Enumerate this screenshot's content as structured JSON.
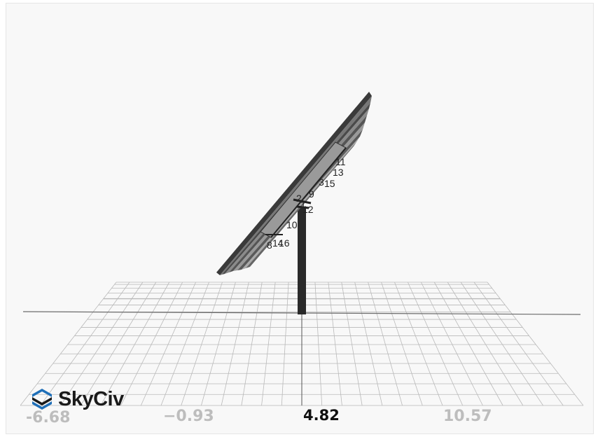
{
  "viewport": {
    "background": "#f8f8f8",
    "grid_color": "#b9b9b9",
    "structure_color": "#2a2a2a"
  },
  "axis": {
    "ticks": [
      "-6.68",
      "−0.93",
      "4.82",
      "10.57"
    ],
    "active_tick": "4.82"
  },
  "node_labels": [
    "11",
    "13",
    "3",
    "15",
    "9",
    "2",
    "1",
    "12",
    "10",
    "8",
    "14",
    "16"
  ],
  "logo": {
    "text": "SkyCiv",
    "accent_color": "#1f6fb8",
    "icon": "skyciv-logo-icon"
  }
}
